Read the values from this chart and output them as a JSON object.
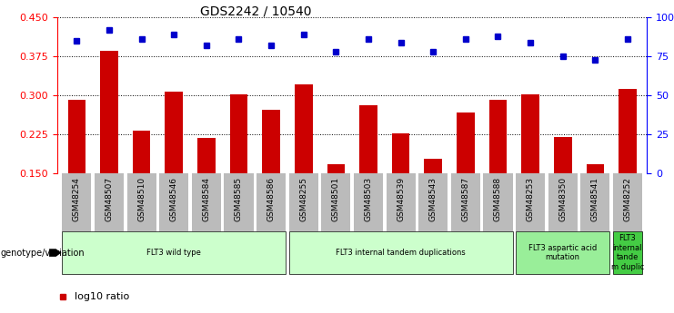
{
  "title": "GDS2242 / 10540",
  "samples": [
    "GSM48254",
    "GSM48507",
    "GSM48510",
    "GSM48546",
    "GSM48584",
    "GSM48585",
    "GSM48586",
    "GSM48255",
    "GSM48501",
    "GSM48503",
    "GSM48539",
    "GSM48543",
    "GSM48587",
    "GSM48588",
    "GSM48253",
    "GSM48350",
    "GSM48541",
    "GSM48252"
  ],
  "log10_ratio": [
    0.292,
    0.385,
    0.232,
    0.308,
    0.218,
    0.303,
    0.272,
    0.322,
    0.168,
    0.282,
    0.228,
    0.178,
    0.268,
    0.292,
    0.302,
    0.22,
    0.168,
    0.313
  ],
  "percentile_rank": [
    85,
    92,
    86,
    89,
    82,
    86,
    82,
    89,
    78,
    86,
    84,
    78,
    86,
    88,
    84,
    75,
    73,
    86
  ],
  "ylim_left": [
    0.15,
    0.45
  ],
  "ylim_right": [
    0,
    100
  ],
  "yticks_left": [
    0.15,
    0.225,
    0.3,
    0.375,
    0.45
  ],
  "yticks_right": [
    0,
    25,
    50,
    75,
    100
  ],
  "bar_color": "#cc0000",
  "dot_color": "#0000cc",
  "groups": [
    {
      "label": "FLT3 wild type",
      "start": 0,
      "end": 6,
      "color": "#ccffcc"
    },
    {
      "label": "FLT3 internal tandem duplications",
      "start": 7,
      "end": 13,
      "color": "#ccffcc"
    },
    {
      "label": "FLT3 aspartic acid\nmutation",
      "start": 14,
      "end": 16,
      "color": "#99ee99"
    },
    {
      "label": "FLT3\ninternal\ntande\nm duplic",
      "start": 17,
      "end": 17,
      "color": "#44cc44"
    }
  ],
  "bar_width": 0.55,
  "tick_bg_color": "#bbbbbb",
  "right_ytick_labels": [
    "0",
    "25",
    "50",
    "75",
    "100%"
  ]
}
